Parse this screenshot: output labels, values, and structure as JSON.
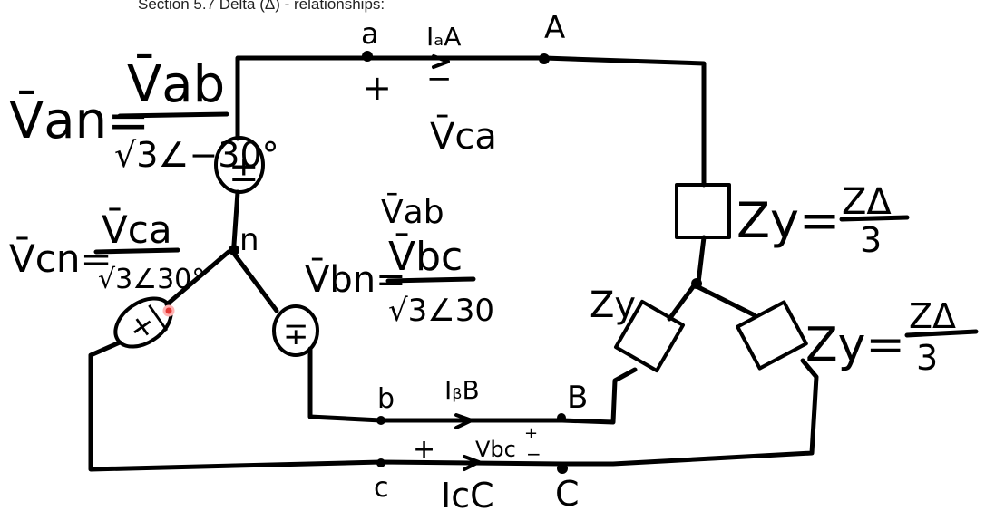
{
  "heading": "Section 5.7 Delta (Δ) - relationships:",
  "nodes": {
    "a": "a",
    "A": "A",
    "n": "n",
    "b": "b",
    "B": "B",
    "c": "c",
    "C": "C"
  },
  "currents": {
    "IaA": "IₐA",
    "IbB": "IᵦB",
    "IcC": "IcC"
  },
  "signs": {
    "plus_top": "+",
    "minus_top": "−",
    "plus_c": "+",
    "plus_bc": "+",
    "minus_bc": "−"
  },
  "voltages": {
    "Vca_top": "V̄ca",
    "Vab_mid": "V̄ab",
    "Vbc_wire": "Vbc"
  },
  "equations": {
    "Van_lhs": "V̄an=",
    "Van_num": "V̄ab",
    "Van_den": "√3∠−30°",
    "Vcn_lhs": "V̄cn=",
    "Vcn_num": "V̄ca",
    "Vcn_den": "√3∠30°",
    "Vbn_lhs": "V̄bn=",
    "Vbn_num": "V̄bc",
    "Vbn_den": "√3∠30"
  },
  "impedances": {
    "zy_top_lhs": "Zy=",
    "zy_top_num": "ZΔ",
    "zy_top_den": "3",
    "zy_left": "Zy",
    "zy_right_lhs": "Zy=",
    "zy_right_num": "ZΔ",
    "zy_right_den": "3"
  },
  "sources": {
    "an": "±",
    "cn": "+|",
    "bn": "∓"
  },
  "colors": {
    "ink": "#000000",
    "laser_pointer": "#e53935"
  }
}
